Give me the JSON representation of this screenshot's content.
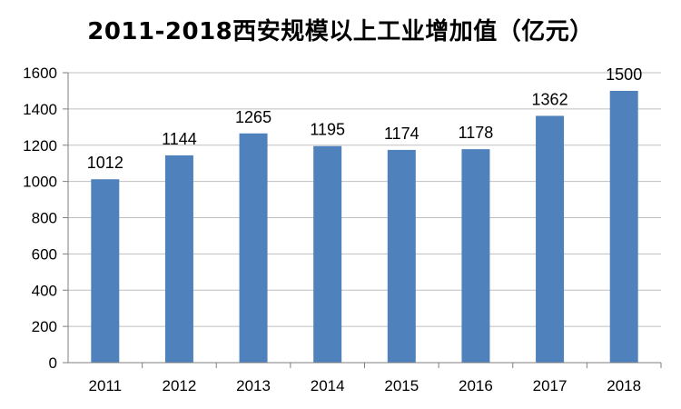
{
  "chart_data": {
    "type": "bar",
    "title": "2011-2018西安规模以上工业增加值（亿元）",
    "categories": [
      "2011",
      "2012",
      "2013",
      "2014",
      "2015",
      "2016",
      "2017",
      "2018"
    ],
    "values": [
      1012,
      1144,
      1265,
      1195,
      1174,
      1178,
      1362,
      1500
    ],
    "y_ticks": [
      "0",
      "200",
      "400",
      "600",
      "800",
      "1000",
      "1200",
      "1400",
      "1600"
    ],
    "ylim": [
      0,
      1600
    ],
    "grid": true,
    "legend": "none",
    "bar_color": "#4f81bd",
    "grid_color": "#bfbfbf",
    "axis_color": "#7f7f7f"
  }
}
